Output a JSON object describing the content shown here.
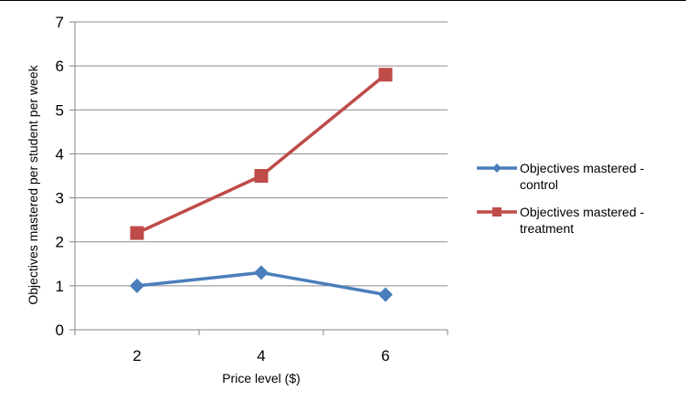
{
  "chart_data": {
    "type": "line",
    "xlabel": "Price level ($)",
    "ylabel": "Objectives mastered per student per week",
    "x": [
      2,
      4,
      6
    ],
    "ylim": [
      0,
      7
    ],
    "yticks": [
      0,
      1,
      2,
      3,
      4,
      5,
      6,
      7
    ],
    "grid": true,
    "legend_position": "right",
    "series": [
      {
        "name": "Objectives mastered - control",
        "name_lines": [
          "Objectives mastered -",
          "control"
        ],
        "values": [
          1.0,
          1.3,
          0.8
        ],
        "color": "#4a7ebb",
        "marker": "diamond"
      },
      {
        "name": "Objectives mastered - treatment",
        "name_lines": [
          "Objectives mastered -",
          "treatment"
        ],
        "values": [
          2.2,
          3.5,
          5.8
        ],
        "color": "#be4b48",
        "marker": "square"
      }
    ]
  }
}
